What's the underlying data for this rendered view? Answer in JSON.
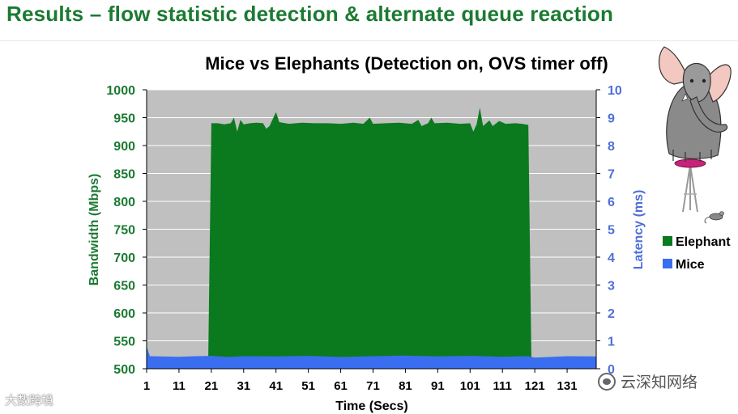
{
  "slide": {
    "title": "Results – flow statistic detection & alternate queue reaction"
  },
  "watermarks": {
    "left": "大数跨境",
    "right": "云深知网络"
  },
  "colors": {
    "title": "#1b7a32",
    "elephant": "#0b7a1e",
    "mice": "#3a6ef0",
    "left_axis": "#1b7a32",
    "right_axis": "#4f6fd8",
    "plot_bg": "#c0c0c0",
    "grid": "#ffffff"
  },
  "icons": [
    "elephant-on-stool-illustration",
    "mouse-icon"
  ],
  "chart_data": {
    "type": "area",
    "title": "Mice vs Elephants (Detection on, OVS timer off)",
    "xlabel": "Time (Secs)",
    "ylabel_left": "Bandwidth (Mbps)",
    "ylabel_right": "Latency (ms)",
    "xlim": [
      1,
      140
    ],
    "xticks": [
      1,
      11,
      21,
      31,
      41,
      51,
      61,
      71,
      81,
      91,
      101,
      111,
      121,
      131
    ],
    "ylim_left": [
      500,
      1000
    ],
    "yticks_left": [
      500,
      550,
      600,
      650,
      700,
      750,
      800,
      850,
      900,
      950,
      1000
    ],
    "ylim_right": [
      0,
      10
    ],
    "yticks_right": [
      0,
      1,
      2,
      3,
      4,
      5,
      6,
      7,
      8,
      9,
      10
    ],
    "grid": true,
    "legend_position": "right",
    "series": [
      {
        "name": "Elephant",
        "axis": "left",
        "points": [
          [
            20,
            500
          ],
          [
            21,
            940
          ],
          [
            23,
            940
          ],
          [
            25,
            938
          ],
          [
            27,
            940
          ],
          [
            28,
            950
          ],
          [
            29,
            925
          ],
          [
            30,
            946
          ],
          [
            31,
            938
          ],
          [
            33,
            940
          ],
          [
            35,
            941
          ],
          [
            37,
            940
          ],
          [
            38,
            930
          ],
          [
            39,
            935
          ],
          [
            41,
            960
          ],
          [
            42,
            942
          ],
          [
            45,
            939
          ],
          [
            49,
            941
          ],
          [
            53,
            940
          ],
          [
            57,
            940
          ],
          [
            61,
            939
          ],
          [
            65,
            941
          ],
          [
            68,
            939
          ],
          [
            70,
            950
          ],
          [
            71,
            939
          ],
          [
            75,
            940
          ],
          [
            79,
            941
          ],
          [
            83,
            939
          ],
          [
            85,
            946
          ],
          [
            86,
            935
          ],
          [
            88,
            940
          ],
          [
            89,
            950
          ],
          [
            90,
            940
          ],
          [
            94,
            941
          ],
          [
            98,
            939
          ],
          [
            101,
            940
          ],
          [
            102,
            925
          ],
          [
            103,
            938
          ],
          [
            104,
            968
          ],
          [
            105,
            935
          ],
          [
            107,
            945
          ],
          [
            108,
            935
          ],
          [
            110,
            944
          ],
          [
            112,
            939
          ],
          [
            115,
            940
          ],
          [
            117,
            939
          ],
          [
            119,
            937
          ],
          [
            120,
            500
          ]
        ]
      },
      {
        "name": "Mice",
        "axis": "right",
        "points": [
          [
            1,
            0.8
          ],
          [
            2,
            0.45
          ],
          [
            5,
            0.44
          ],
          [
            11,
            0.43
          ],
          [
            16,
            0.45
          ],
          [
            21,
            0.46
          ],
          [
            26,
            0.42
          ],
          [
            31,
            0.45
          ],
          [
            41,
            0.44
          ],
          [
            51,
            0.46
          ],
          [
            61,
            0.42
          ],
          [
            71,
            0.45
          ],
          [
            81,
            0.47
          ],
          [
            91,
            0.44
          ],
          [
            101,
            0.46
          ],
          [
            111,
            0.43
          ],
          [
            119,
            0.45
          ],
          [
            121,
            0.4
          ],
          [
            131,
            0.45
          ],
          [
            140,
            0.44
          ]
        ]
      }
    ]
  }
}
